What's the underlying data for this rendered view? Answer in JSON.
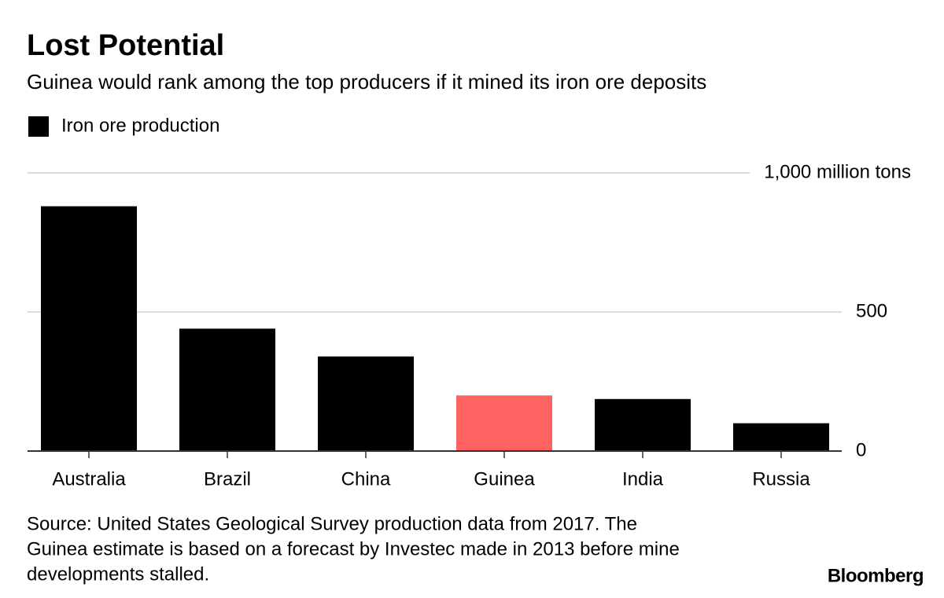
{
  "chart_data": {
    "type": "bar",
    "title": "Lost Potential",
    "subtitle": "Guinea would rank among the top producers if it mined its iron ore deposits",
    "categories": [
      "Australia",
      "Brazil",
      "China",
      "Guinea",
      "India",
      "Russia"
    ],
    "series": [
      {
        "name": "Iron ore production",
        "color": "#000000",
        "values": [
          880,
          440,
          340,
          200,
          187,
          100
        ],
        "colors": [
          "#000000",
          "#000000",
          "#000000",
          "#ff6361",
          "#000000",
          "#000000"
        ]
      }
    ],
    "ylim": [
      0,
      1000
    ],
    "yticks": [
      0,
      500,
      {
        "value": 1000,
        "label": "1,000 million tons"
      }
    ],
    "grid": true,
    "source": [
      "Source: United States Geological Survey production data from 2017. The",
      "Guinea estimate is based on a forecast by Investec made in 2013 before mine",
      "developments stalled."
    ],
    "brand": "Bloomberg"
  }
}
